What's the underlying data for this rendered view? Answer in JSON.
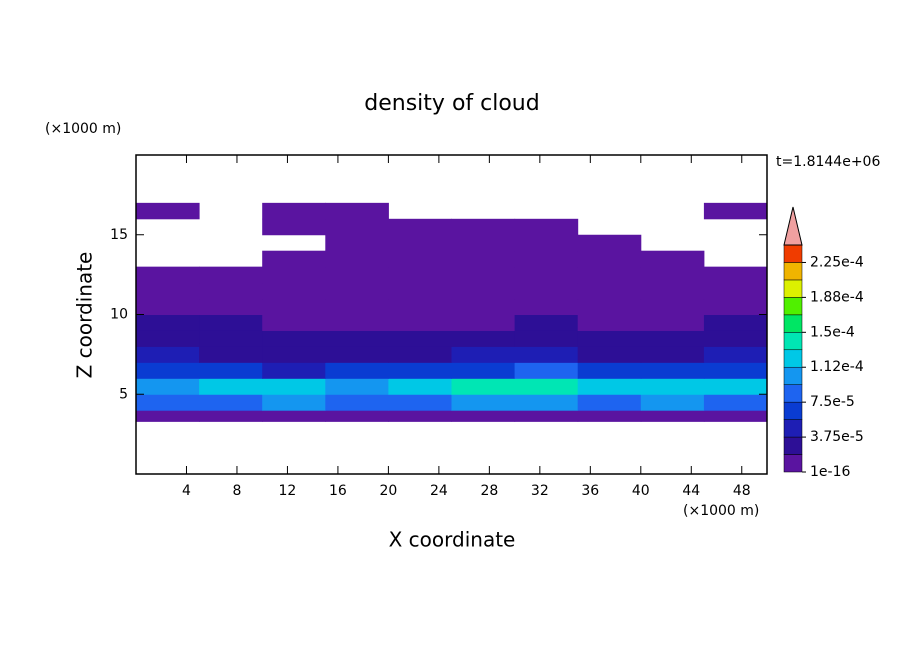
{
  "chart_data": {
    "type": "contour",
    "title": "density of cloud",
    "x_label": "X coordinate",
    "y_label": "Z coordinate",
    "x_unit": "(×1000 m)",
    "y_unit": "(×1000 m)",
    "annotation": "t=1.8144e+06",
    "xlim": [
      0,
      50
    ],
    "xticks": [
      4,
      8,
      12,
      16,
      20,
      24,
      28,
      32,
      36,
      40,
      44,
      48
    ],
    "ylim": [
      0,
      20
    ],
    "yticks": [
      5,
      10,
      15
    ],
    "xbins": [
      0,
      5,
      10,
      15,
      20,
      25,
      30,
      35,
      40,
      45,
      50
    ],
    "ybins": [
      3.3,
      4,
      5,
      6,
      7,
      8,
      9,
      10,
      11,
      12,
      13,
      14,
      15,
      16,
      17
    ],
    "values": [
      [
        1e-05,
        1e-05,
        1e-05,
        1e-05,
        1e-05,
        1e-05,
        1e-05,
        1e-05,
        1e-05,
        1e-05
      ],
      [
        8e-05,
        9e-05,
        9.5e-05,
        8.5e-05,
        9e-05,
        0.0001,
        9.5e-05,
        9e-05,
        0.0001,
        9e-05
      ],
      [
        0.00011,
        0.00012,
        0.000115,
        0.00011,
        0.00012,
        0.000145,
        0.00015,
        0.00013,
        0.000115,
        0.00012
      ],
      [
        7e-05,
        6e-05,
        5e-05,
        6e-05,
        6.5e-05,
        7e-05,
        8e-05,
        7e-05,
        6e-05,
        7e-05
      ],
      [
        4e-05,
        3.5e-05,
        3e-05,
        3e-05,
        3.5e-05,
        4e-05,
        4e-05,
        3.5e-05,
        3e-05,
        4e-05
      ],
      [
        3e-05,
        2.5e-05,
        2.5e-05,
        2e-05,
        2.5e-05,
        2.5e-05,
        3e-05,
        2.5e-05,
        2e-05,
        2.5e-05
      ],
      [
        2.5e-05,
        2e-05,
        1.5e-05,
        1.5e-05,
        1.5e-05,
        1.5e-05,
        2e-05,
        1.5e-05,
        1.5e-05,
        2e-05
      ],
      [
        1e-05,
        1e-05,
        1e-05,
        1e-05,
        1e-05,
        1e-05,
        1e-05,
        1e-05,
        1e-05,
        1e-05
      ],
      [
        1e-05,
        1e-05,
        1e-05,
        1e-05,
        1e-05,
        1e-05,
        1e-05,
        1e-05,
        1e-05,
        1e-05
      ],
      [
        1e-05,
        1e-05,
        1e-05,
        1e-05,
        1e-05,
        1e-05,
        1e-05,
        1e-05,
        1e-05,
        1e-05
      ],
      [
        null,
        null,
        1e-05,
        1e-05,
        1e-05,
        1e-05,
        1e-05,
        1e-05,
        1e-05,
        null
      ],
      [
        null,
        null,
        null,
        1e-05,
        1e-05,
        1e-05,
        1e-05,
        1e-05,
        null,
        null
      ],
      [
        null,
        null,
        1e-05,
        1e-05,
        1e-05,
        1e-05,
        1e-05,
        null,
        null,
        null
      ],
      [
        1e-05,
        null,
        1e-05,
        1e-05,
        null,
        null,
        null,
        null,
        null,
        1e-05
      ]
    ],
    "colorbar": {
      "ylim": [
        1e-16,
        0.00024375
      ],
      "colors": [
        "#5a14a0",
        "#2d0f96",
        "#1e1eb4",
        "#0a3cd2",
        "#1e64f0",
        "#1496f0",
        "#00c8e6",
        "#00e6b4",
        "#00e664",
        "#50f000",
        "#dcf000",
        "#f0b400",
        "#f03c00"
      ],
      "extend_color": "#f0a0a0",
      "ticks": [
        1e-16,
        {
          "value": 3.75e-05,
          "label": "3.75e-5"
        },
        {
          "value": 7.5e-05,
          "label": "7.5e-5"
        },
        {
          "value": 0.0001125,
          "label": "1.12e-4"
        },
        {
          "value": 0.00015,
          "label": "1.5e-4"
        },
        {
          "value": 0.0001875,
          "label": "1.88e-4"
        },
        {
          "value": 0.000225,
          "label": "2.25e-4"
        }
      ]
    }
  }
}
